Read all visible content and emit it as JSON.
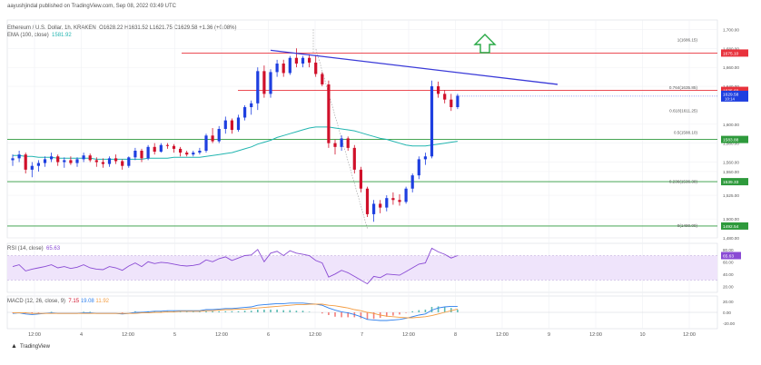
{
  "header": {
    "author_line": "aayushjindal published on TradingView.com, Sep 08, 2022 03:49 UTC",
    "symbol_line": "Ethereum / U.S. Dollar, 1h, KRAKEN",
    "ohlc": "O1628.22 H1631.52 L1621.75 C1629.58 +1.36 (+0.08%)",
    "ema_line": "EMA (100, close)",
    "ema_value": "1581.92",
    "rsi_line": "RSI (14, close)",
    "rsi_value": "65.63",
    "macd_line": "MACD (12, 26, close, 9)",
    "macd_values": [
      "7.15",
      "19.08",
      "11.92"
    ]
  },
  "footer": {
    "brand": "TradingView"
  },
  "colors": {
    "up": "#1e3fe0",
    "down": "#d0102a",
    "ema": "#22b5b0",
    "resistance": "#e8323c",
    "support": "#2e9a3c",
    "trend": "#3a3ad8",
    "arrow": "#27a844",
    "rsi": "#8a4bd4",
    "rsi_band": "#efe4fb",
    "macd": "#2f80ed",
    "signal": "#f39c40"
  },
  "chart_data": {
    "type": "candlestick",
    "symbol": "ETH/USD",
    "timeframe": "1h",
    "x_tick_labels": [
      "12:00",
      "4",
      "12:00",
      "5",
      "12:00",
      "6",
      "12:00",
      "7",
      "12:00",
      "8",
      "12:00",
      "9",
      "12:00",
      "10",
      "12:00"
    ],
    "y_tick_labels": [
      "1,700.00",
      "1,680.00",
      "1,660.00",
      "1,640.00",
      "1,600.00",
      "1,580.00",
      "1,560.00",
      "1,550.00",
      "1,525.00",
      "1,500.00",
      "1,480.00"
    ],
    "ylim": [
      1480,
      1710
    ],
    "current_price": "1629.58",
    "current_countdown": "10:14",
    "price_labels": [
      {
        "text": "1675.10",
        "price": 1675.1,
        "kind": "resistance"
      },
      {
        "text": "1635.69",
        "price": 1635.69,
        "kind": "resistance"
      },
      {
        "text": "1583.88",
        "price": 1583.88,
        "kind": "support"
      },
      {
        "text": "1539.33",
        "price": 1539.33,
        "kind": "support"
      },
      {
        "text": "1492.54",
        "price": 1492.54,
        "kind": "support"
      }
    ],
    "fib_levels": [
      {
        "text": "1(1686.15)",
        "price": 1686.15
      },
      {
        "text": "0.764(1635.85)",
        "price": 1635.85
      },
      {
        "text": "0.618(1611.25)",
        "price": 1611.25
      },
      {
        "text": "0.5(1588.10)",
        "price": 1588.1
      },
      {
        "text": "0.236(1536.38)",
        "price": 1536.38
      },
      {
        "text": "0(1490.00)",
        "price": 1490.0
      }
    ],
    "candles": [
      [
        1562,
        1568,
        1556,
        1564
      ],
      [
        1564,
        1572,
        1560,
        1568
      ],
      [
        1568,
        1570,
        1548,
        1552
      ],
      [
        1552,
        1560,
        1544,
        1556
      ],
      [
        1556,
        1562,
        1550,
        1559
      ],
      [
        1559,
        1566,
        1555,
        1563
      ],
      [
        1563,
        1570,
        1560,
        1566
      ],
      [
        1566,
        1568,
        1556,
        1560
      ],
      [
        1560,
        1565,
        1554,
        1562
      ],
      [
        1562,
        1566,
        1557,
        1559
      ],
      [
        1559,
        1565,
        1555,
        1563
      ],
      [
        1563,
        1570,
        1560,
        1567
      ],
      [
        1567,
        1569,
        1560,
        1562
      ],
      [
        1562,
        1565,
        1555,
        1560
      ],
      [
        1560,
        1564,
        1554,
        1558
      ],
      [
        1558,
        1566,
        1555,
        1564
      ],
      [
        1564,
        1568,
        1558,
        1561
      ],
      [
        1561,
        1563,
        1552,
        1556
      ],
      [
        1556,
        1566,
        1554,
        1565
      ],
      [
        1565,
        1575,
        1562,
        1572
      ],
      [
        1572,
        1574,
        1560,
        1564
      ],
      [
        1564,
        1578,
        1562,
        1576
      ],
      [
        1576,
        1580,
        1568,
        1571
      ],
      [
        1571,
        1580,
        1570,
        1578
      ],
      [
        1578,
        1580,
        1574,
        1577
      ],
      [
        1577,
        1579,
        1570,
        1574
      ],
      [
        1574,
        1576,
        1566,
        1570
      ],
      [
        1570,
        1572,
        1566,
        1568
      ],
      [
        1568,
        1572,
        1566,
        1570
      ],
      [
        1570,
        1575,
        1568,
        1572
      ],
      [
        1572,
        1590,
        1570,
        1588
      ],
      [
        1588,
        1596,
        1580,
        1582
      ],
      [
        1582,
        1598,
        1580,
        1595
      ],
      [
        1595,
        1608,
        1590,
        1604
      ],
      [
        1604,
        1606,
        1590,
        1594
      ],
      [
        1594,
        1610,
        1592,
        1607
      ],
      [
        1607,
        1620,
        1604,
        1618
      ],
      [
        1618,
        1625,
        1610,
        1622
      ],
      [
        1622,
        1660,
        1615,
        1656
      ],
      [
        1656,
        1662,
        1628,
        1632
      ],
      [
        1632,
        1658,
        1628,
        1655
      ],
      [
        1655,
        1668,
        1650,
        1664
      ],
      [
        1664,
        1668,
        1650,
        1654
      ],
      [
        1654,
        1672,
        1652,
        1670
      ],
      [
        1670,
        1680,
        1660,
        1664
      ],
      [
        1664,
        1672,
        1660,
        1670
      ],
      [
        1670,
        1674,
        1660,
        1665
      ],
      [
        1665,
        1673,
        1650,
        1653
      ],
      [
        1653,
        1655,
        1640,
        1642
      ],
      [
        1642,
        1646,
        1575,
        1580
      ],
      [
        1580,
        1584,
        1568,
        1576
      ],
      [
        1576,
        1588,
        1572,
        1585
      ],
      [
        1585,
        1587,
        1572,
        1575
      ],
      [
        1575,
        1578,
        1548,
        1552
      ],
      [
        1552,
        1555,
        1528,
        1532
      ],
      [
        1532,
        1534,
        1502,
        1505
      ],
      [
        1505,
        1520,
        1497,
        1516
      ],
      [
        1516,
        1520,
        1506,
        1512
      ],
      [
        1512,
        1525,
        1508,
        1522
      ],
      [
        1522,
        1528,
        1515,
        1520
      ],
      [
        1520,
        1526,
        1514,
        1518
      ],
      [
        1518,
        1534,
        1516,
        1532
      ],
      [
        1532,
        1548,
        1528,
        1546
      ],
      [
        1546,
        1566,
        1542,
        1563
      ],
      [
        1563,
        1570,
        1557,
        1566
      ],
      [
        1566,
        1646,
        1564,
        1640
      ],
      [
        1640,
        1645,
        1628,
        1632
      ],
      [
        1632,
        1636,
        1622,
        1626
      ],
      [
        1626,
        1632,
        1614,
        1618
      ],
      [
        1618,
        1632,
        1616,
        1630
      ]
    ],
    "ema100": [
      1567,
      1567,
      1566,
      1566,
      1565,
      1565,
      1565,
      1564,
      1564,
      1564,
      1564,
      1564,
      1564,
      1563,
      1563,
      1563,
      1563,
      1563,
      1563,
      1563,
      1563,
      1564,
      1564,
      1564,
      1564,
      1565,
      1565,
      1565,
      1565,
      1565,
      1566,
      1567,
      1568,
      1569,
      1570,
      1572,
      1574,
      1576,
      1579,
      1581,
      1583,
      1586,
      1588,
      1590,
      1592,
      1594,
      1596,
      1597,
      1597,
      1597,
      1596,
      1595,
      1594,
      1593,
      1591,
      1589,
      1587,
      1585,
      1584,
      1582,
      1580,
      1578,
      1577,
      1577,
      1577,
      1578,
      1579,
      1580,
      1581,
      1582
    ],
    "rsi": [
      52,
      55,
      45,
      48,
      50,
      52,
      55,
      50,
      52,
      49,
      51,
      55,
      50,
      48,
      47,
      52,
      50,
      46,
      53,
      58,
      52,
      60,
      57,
      59,
      58,
      56,
      54,
      53,
      54,
      56,
      63,
      60,
      65,
      68,
      62,
      66,
      70,
      71,
      80,
      60,
      74,
      77,
      70,
      78,
      74,
      72,
      70,
      62,
      58,
      35,
      40,
      46,
      42,
      36,
      30,
      24,
      36,
      34,
      40,
      39,
      38,
      44,
      50,
      56,
      58,
      82,
      76,
      72,
      66,
      70
    ],
    "macd": [
      -2,
      -1,
      -3,
      -4,
      -3,
      -2,
      -1,
      -2,
      -2,
      -2,
      -2,
      -1,
      -1,
      -2,
      -2,
      -2,
      -2,
      -3,
      -2,
      0,
      0,
      1,
      2,
      2,
      3,
      3,
      3,
      3,
      3,
      3,
      5,
      5,
      6,
      7,
      7,
      8,
      9,
      10,
      13,
      14,
      15,
      16,
      16,
      17,
      17,
      17,
      16,
      15,
      13,
      8,
      4,
      1,
      -1,
      -4,
      -8,
      -13,
      -14,
      -15,
      -15,
      -14,
      -13,
      -11,
      -8,
      -5,
      -3,
      4,
      8,
      10,
      11,
      11
    ],
    "signal": [
      -1,
      -1,
      -1,
      -2,
      -2,
      -2,
      -2,
      -2,
      -2,
      -2,
      -2,
      -2,
      -2,
      -2,
      -2,
      -2,
      -2,
      -2,
      -2,
      -2,
      -1,
      -1,
      0,
      0,
      1,
      1,
      2,
      2,
      2,
      2,
      3,
      3,
      4,
      5,
      5,
      6,
      6,
      7,
      8,
      9,
      10,
      11,
      12,
      13,
      14,
      14,
      15,
      15,
      15,
      13,
      12,
      10,
      8,
      5,
      3,
      0,
      -2,
      -5,
      -7,
      -8,
      -9,
      -10,
      -10,
      -9,
      -8,
      -6,
      -3,
      0,
      3,
      6
    ],
    "rsi_ylim": [
      10,
      90
    ],
    "macd_ylim": [
      -30,
      30
    ],
    "rsi_tick_labels": [
      "80.00",
      "60.00",
      "40.00",
      "20.00"
    ],
    "macd_tick_labels": [
      "20.00",
      "0.00",
      "-20.00"
    ],
    "rsi_levels": [
      70,
      30
    ]
  }
}
